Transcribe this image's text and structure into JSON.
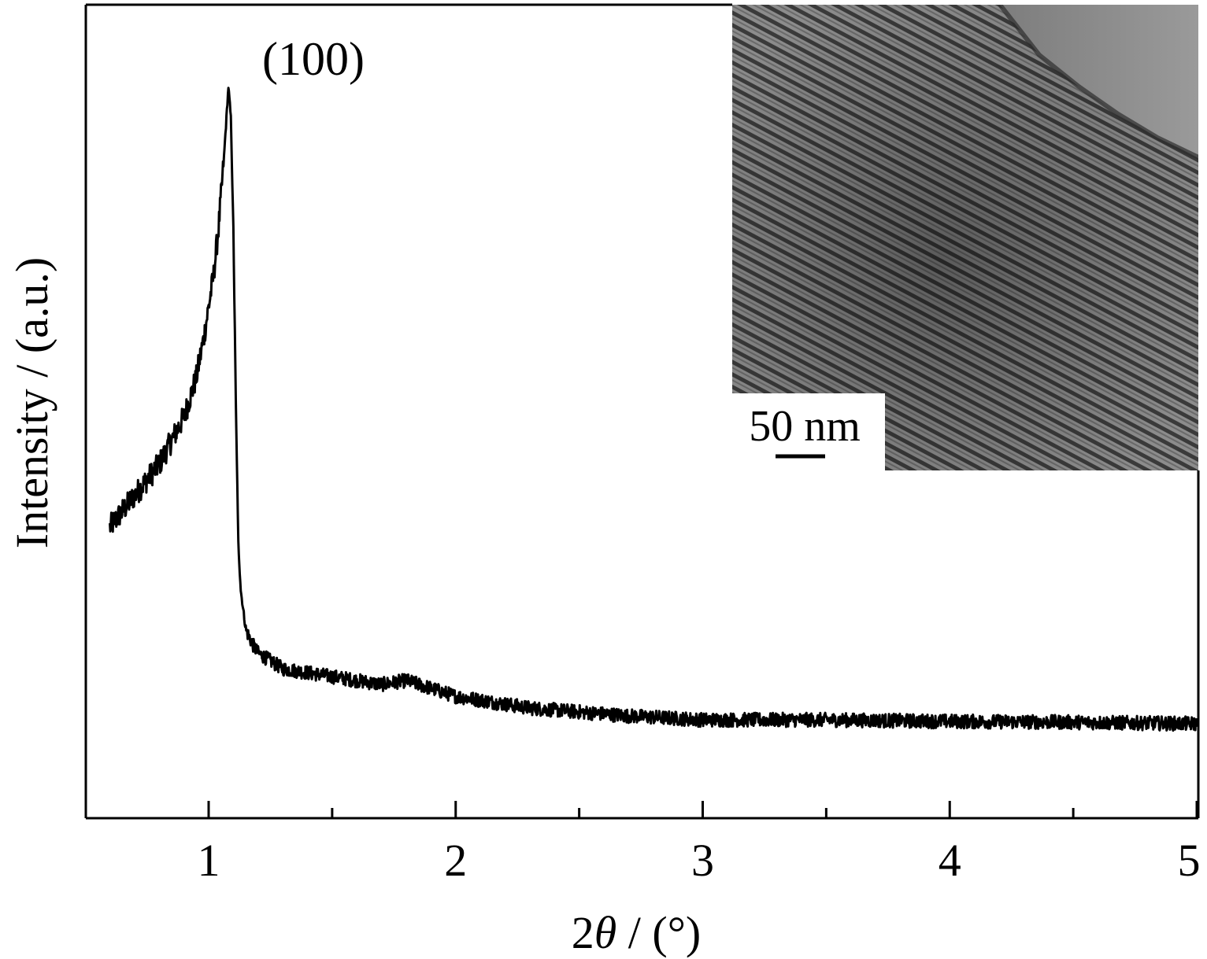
{
  "chart_data": {
    "type": "line",
    "title": "",
    "xlabel_prefix": "2",
    "xlabel_symbol": "θ",
    "xlabel_suffix": " / (°)",
    "ylabel": "Intensity / (a.u.)",
    "xlim": [
      0.5,
      5.0
    ],
    "ylim": [
      0,
      100
    ],
    "x_ticks": [
      1,
      2,
      3,
      4,
      5
    ],
    "x_tick_labels": [
      "1",
      "2",
      "3",
      "4",
      "5"
    ],
    "x_minor_ticks": [
      1.5,
      2.5,
      3.5,
      4.5
    ],
    "y_ticks_visible": false,
    "grid": false,
    "legend": "none",
    "annotation": "(100)",
    "series": [
      {
        "x": [
          0.6,
          0.65,
          0.7,
          0.75,
          0.8,
          0.85,
          0.9,
          0.95,
          0.98,
          1.0,
          1.02,
          1.04,
          1.06,
          1.08,
          1.09,
          1.1,
          1.11,
          1.12,
          1.13,
          1.15,
          1.18,
          1.2,
          1.25,
          1.3,
          1.4,
          1.5,
          1.6,
          1.7,
          1.8,
          1.9,
          2.0,
          2.1,
          2.2,
          2.3,
          2.5,
          2.7,
          3.0,
          3.5,
          4.0,
          4.5,
          5.0
        ],
        "y": [
          34,
          36,
          38,
          40,
          42,
          45,
          48,
          53,
          58,
          62,
          66,
          72,
          80,
          90,
          86,
          72,
          50,
          32,
          26,
          21,
          19,
          18,
          17,
          16,
          15.5,
          15,
          14.5,
          14,
          14.5,
          13.5,
          12.5,
          12,
          11.5,
          11,
          10.5,
          10,
          9.5,
          9.5,
          9.3,
          9.2,
          9.0
        ]
      }
    ]
  },
  "inset": {
    "scale_bar_label": "50 nm"
  }
}
